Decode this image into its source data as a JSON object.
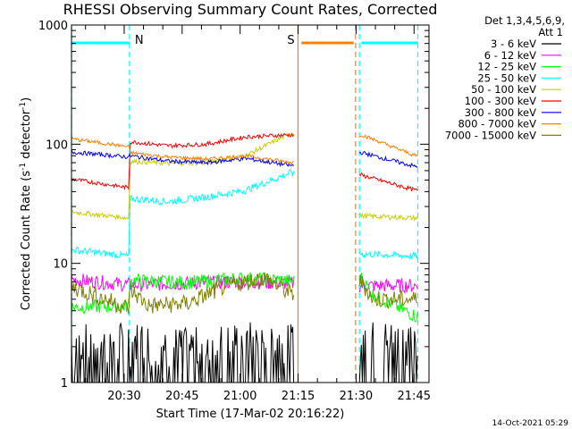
{
  "chart_data": {
    "type": "line",
    "title": "RHESSI Observing Summary Count Rates, Corrected",
    "xlabel": "Start Time (17-Mar-02 20:16:22)",
    "ylabel_main": "Corrected Count Rate (s",
    "ylabel_sup1": "-1",
    "ylabel_mid": " detector",
    "ylabel_sup2": "-1",
    "ylabel_end": ")",
    "yscale": "log",
    "ylim": [
      1,
      1000
    ],
    "xlim_minutes_after_start": [
      0,
      92.5
    ],
    "x_ticks": [
      {
        "label": "20:30",
        "minutes": 13.63
      },
      {
        "label": "20:45",
        "minutes": 28.63
      },
      {
        "label": "21:00",
        "minutes": 43.63
      },
      {
        "label": "21:15",
        "minutes": 58.63
      },
      {
        "label": "21:30",
        "minutes": 73.63
      },
      {
        "label": "21:45",
        "minutes": 88.63
      }
    ],
    "y_ticks": [
      {
        "label": "1",
        "value": 1
      },
      {
        "label": "10",
        "value": 10
      },
      {
        "label": "100",
        "value": 100
      },
      {
        "label": "1000",
        "value": 1000
      }
    ],
    "legend_header": [
      "Det 1,3,4,5,6,9,",
      "Att 1"
    ],
    "legend_position": "right",
    "data_gap_minutes": [
      57.5,
      74.5
    ],
    "markers": [
      {
        "label": "N",
        "color": "#00ffff",
        "line_minutes": [
          0,
          15
        ],
        "bar": [
          0,
          15
        ],
        "label_at": 15
      },
      {
        "label": "S",
        "color": "#ff8000",
        "line_minutes": [
          58.6,
          73.5
        ],
        "bar": [
          59.5,
          73
        ],
        "label_at": 58.6
      },
      {
        "label": "",
        "color": "#00ffff",
        "line_minutes": [
          74.5,
          89.6
        ],
        "bar": [
          75,
          89.6
        ]
      }
    ],
    "series": [
      {
        "name": "3 - 6 keV",
        "color": "#000000",
        "values": [
          [
            0,
            1.4
          ],
          [
            15,
            1.5
          ],
          [
            30,
            1.3
          ],
          [
            45,
            1.5
          ],
          [
            57,
            1.4
          ],
          [
            75,
            1.5
          ],
          [
            89,
            1.5
          ]
        ]
      },
      {
        "name": "6 - 12 keV",
        "color": "#ff00ff",
        "values": [
          [
            0,
            7.3
          ],
          [
            15,
            6.6
          ],
          [
            30,
            6.8
          ],
          [
            45,
            7
          ],
          [
            57,
            6.8
          ],
          [
            75,
            6.5
          ],
          [
            89,
            6.5
          ]
        ]
      },
      {
        "name": "12 - 25 keV",
        "color": "#00ff00",
        "values": [
          [
            0,
            4.3
          ],
          [
            14.9,
            4.4
          ],
          [
            15.1,
            7.2
          ],
          [
            30,
            6.9
          ],
          [
            45,
            7.5
          ],
          [
            57,
            7.1
          ],
          [
            75,
            7.5
          ],
          [
            78,
            5.5
          ],
          [
            89,
            3.6
          ]
        ]
      },
      {
        "name": "25 - 50 keV",
        "color": "#00ffff",
        "values": [
          [
            0,
            13
          ],
          [
            14.9,
            11.5
          ],
          [
            15.1,
            35
          ],
          [
            25,
            33
          ],
          [
            35,
            36
          ],
          [
            45,
            41
          ],
          [
            57,
            58
          ],
          [
            75,
            12
          ],
          [
            89,
            11.5
          ]
        ]
      },
      {
        "name": "50 - 100 keV",
        "color": "#cccc00",
        "values": [
          [
            0,
            27
          ],
          [
            14.9,
            24
          ],
          [
            15.1,
            72
          ],
          [
            25,
            69
          ],
          [
            35,
            70
          ],
          [
            45,
            80
          ],
          [
            57,
            125
          ],
          [
            75,
            25
          ],
          [
            89,
            24
          ]
        ]
      },
      {
        "name": "100 - 300 keV",
        "color": "#ff0000",
        "values": [
          [
            0,
            51
          ],
          [
            14.9,
            43
          ],
          [
            15.1,
            105
          ],
          [
            25,
            97
          ],
          [
            35,
            100
          ],
          [
            45,
            115
          ],
          [
            57,
            120
          ],
          [
            75,
            55
          ],
          [
            89,
            41
          ]
        ]
      },
      {
        "name": "300 - 800 keV",
        "color": "#0000ff",
        "values": [
          [
            0,
            86
          ],
          [
            14.9,
            78
          ],
          [
            15.1,
            80
          ],
          [
            25,
            72
          ],
          [
            35,
            70
          ],
          [
            45,
            76
          ],
          [
            57,
            66
          ],
          [
            75,
            85
          ],
          [
            89,
            65
          ]
        ]
      },
      {
        "name": "800 - 7000 keV",
        "color": "#ff8000",
        "values": [
          [
            0,
            111
          ],
          [
            14.9,
            95
          ],
          [
            15.1,
            85
          ],
          [
            25,
            78
          ],
          [
            35,
            75
          ],
          [
            45,
            80
          ],
          [
            57,
            70
          ],
          [
            75,
            120
          ],
          [
            89,
            80
          ]
        ]
      },
      {
        "name": "7000 - 15000 keV",
        "color": "#808000",
        "values": [
          [
            0,
            6.4
          ],
          [
            14.9,
            4.2
          ],
          [
            15.1,
            6
          ],
          [
            20,
            4.4
          ],
          [
            30,
            4.6
          ],
          [
            40,
            6.5
          ],
          [
            50,
            7.5
          ],
          [
            57,
            5.5
          ],
          [
            75,
            7
          ],
          [
            78,
            5
          ],
          [
            89,
            5
          ]
        ]
      }
    ]
  },
  "timestamp": "14-Oct-2021 05:29"
}
